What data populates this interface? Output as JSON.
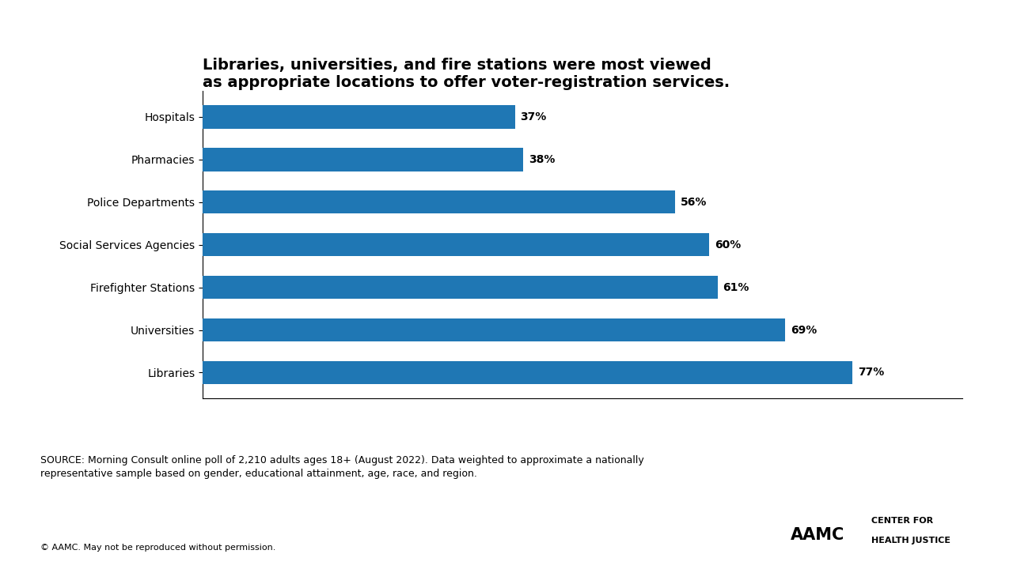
{
  "chart_data": {
    "type": "bar",
    "orientation": "horizontal",
    "title": "Libraries, universities, and fire stations were most viewed\nas appropriate locations to offer voter-registration services.",
    "categories": [
      "Libraries",
      "Universities",
      "Firefighter Stations",
      "Social Services Agencies",
      "Police Departments",
      "Pharmacies",
      "Hospitals"
    ],
    "values": [
      77,
      69,
      61,
      60,
      56,
      38,
      37
    ],
    "value_labels": [
      "77%",
      "69%",
      "61%",
      "60%",
      "56%",
      "38%",
      "37%"
    ],
    "data_labels": true,
    "xlim": [
      0,
      90
    ],
    "tick_labels": "y",
    "grid": false,
    "annotations": [
      "SOURCE: Morning Consult online poll of 2,210 adults ages 18+ (August 2022). Data weighted to approximate a nationally\nrepresentative sample based on gender, educational attainment, age, race, and region.",
      "© AAMC. May not be reproduced without permission.",
      "AAMC",
      "CENTER FOR",
      "HEALTH JUSTICE"
    ]
  }
}
